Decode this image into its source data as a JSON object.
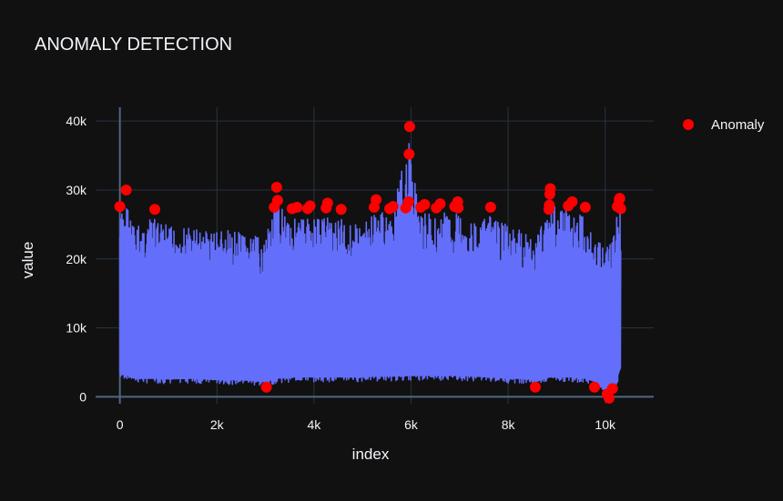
{
  "chart_data": {
    "type": "line",
    "title": "ANOMALY DETECTION",
    "xlabel": "index",
    "ylabel": "value",
    "xlim": [
      -500,
      11000
    ],
    "ylim": [
      -1000,
      42000
    ],
    "x_ticks": [
      0,
      2000,
      4000,
      6000,
      8000,
      10000
    ],
    "x_tick_labels": [
      "0",
      "2k",
      "4k",
      "6k",
      "8k",
      "10k"
    ],
    "y_ticks": [
      0,
      10000,
      20000,
      30000,
      40000
    ],
    "y_tick_labels": [
      "0",
      "10k",
      "20k",
      "30k",
      "40k"
    ],
    "grid": true,
    "legend_position": "top-right",
    "series": [
      {
        "name": "",
        "kind": "line",
        "color": "#636efa",
        "x_range": [
          0,
          10320
        ],
        "envelope": [
          {
            "x": 0,
            "low": 2500,
            "high": 27500
          },
          {
            "x": 130,
            "low": 2600,
            "high": 30000
          },
          {
            "x": 300,
            "low": 2000,
            "high": 26000
          },
          {
            "x": 700,
            "low": 2000,
            "high": 27200
          },
          {
            "x": 1000,
            "low": 1900,
            "high": 26000
          },
          {
            "x": 1500,
            "low": 2000,
            "high": 25800
          },
          {
            "x": 2000,
            "low": 1800,
            "high": 25500
          },
          {
            "x": 2500,
            "low": 1800,
            "high": 25000
          },
          {
            "x": 3000,
            "low": 1500,
            "high": 24000
          },
          {
            "x": 3230,
            "low": 2000,
            "high": 30400
          },
          {
            "x": 3600,
            "low": 2200,
            "high": 27300
          },
          {
            "x": 4000,
            "low": 2200,
            "high": 27500
          },
          {
            "x": 4300,
            "low": 2200,
            "high": 28000
          },
          {
            "x": 4600,
            "low": 2200,
            "high": 27000
          },
          {
            "x": 5000,
            "low": 2200,
            "high": 26000
          },
          {
            "x": 5280,
            "low": 2300,
            "high": 28600
          },
          {
            "x": 5600,
            "low": 2300,
            "high": 27500
          },
          {
            "x": 5950,
            "low": 2400,
            "high": 39200
          },
          {
            "x": 6200,
            "low": 2400,
            "high": 27800
          },
          {
            "x": 6600,
            "low": 2400,
            "high": 28000
          },
          {
            "x": 6950,
            "low": 2400,
            "high": 28300
          },
          {
            "x": 7300,
            "low": 2300,
            "high": 26500
          },
          {
            "x": 7650,
            "low": 2200,
            "high": 27500
          },
          {
            "x": 8000,
            "low": 2000,
            "high": 26000
          },
          {
            "x": 8400,
            "low": 2000,
            "high": 25000
          },
          {
            "x": 8560,
            "low": 1500,
            "high": 24000
          },
          {
            "x": 8850,
            "low": 2200,
            "high": 30200
          },
          {
            "x": 9300,
            "low": 2200,
            "high": 28300
          },
          {
            "x": 9600,
            "low": 2000,
            "high": 27500
          },
          {
            "x": 9800,
            "low": 1500,
            "high": 24000
          },
          {
            "x": 10050,
            "low": 0,
            "high": 23000
          },
          {
            "x": 10200,
            "low": 1000,
            "high": 27500
          },
          {
            "x": 10320,
            "low": 3500,
            "high": 28800
          }
        ]
      },
      {
        "name": "Anomaly",
        "kind": "markers",
        "color": "#ff0000",
        "points": [
          {
            "x": 0,
            "y": 27600
          },
          {
            "x": 130,
            "y": 30000
          },
          {
            "x": 720,
            "y": 27200
          },
          {
            "x": 3020,
            "y": 1400
          },
          {
            "x": 3180,
            "y": 27500
          },
          {
            "x": 3230,
            "y": 30400
          },
          {
            "x": 3250,
            "y": 28500
          },
          {
            "x": 3550,
            "y": 27300
          },
          {
            "x": 3650,
            "y": 27500
          },
          {
            "x": 3870,
            "y": 27300
          },
          {
            "x": 3920,
            "y": 27700
          },
          {
            "x": 4250,
            "y": 27400
          },
          {
            "x": 4280,
            "y": 28100
          },
          {
            "x": 4560,
            "y": 27200
          },
          {
            "x": 5240,
            "y": 27500
          },
          {
            "x": 5280,
            "y": 28600
          },
          {
            "x": 5560,
            "y": 27300
          },
          {
            "x": 5630,
            "y": 27600
          },
          {
            "x": 5890,
            "y": 27400
          },
          {
            "x": 5950,
            "y": 28300
          },
          {
            "x": 5960,
            "y": 35200
          },
          {
            "x": 5970,
            "y": 39200
          },
          {
            "x": 6200,
            "y": 27500
          },
          {
            "x": 6280,
            "y": 27900
          },
          {
            "x": 6520,
            "y": 27400
          },
          {
            "x": 6600,
            "y": 28000
          },
          {
            "x": 6900,
            "y": 27600
          },
          {
            "x": 6960,
            "y": 28300
          },
          {
            "x": 6970,
            "y": 27400
          },
          {
            "x": 7640,
            "y": 27500
          },
          {
            "x": 8560,
            "y": 1400
          },
          {
            "x": 8840,
            "y": 27200
          },
          {
            "x": 8850,
            "y": 27800
          },
          {
            "x": 8860,
            "y": 29400
          },
          {
            "x": 8870,
            "y": 30200
          },
          {
            "x": 9240,
            "y": 27700
          },
          {
            "x": 9320,
            "y": 28300
          },
          {
            "x": 9590,
            "y": 27500
          },
          {
            "x": 9780,
            "y": 1400
          },
          {
            "x": 10040,
            "y": 400
          },
          {
            "x": 10080,
            "y": -200
          },
          {
            "x": 10150,
            "y": 1200
          },
          {
            "x": 10250,
            "y": 27600
          },
          {
            "x": 10290,
            "y": 28600
          },
          {
            "x": 10300,
            "y": 28800
          },
          {
            "x": 10320,
            "y": 27300
          }
        ]
      }
    ]
  }
}
